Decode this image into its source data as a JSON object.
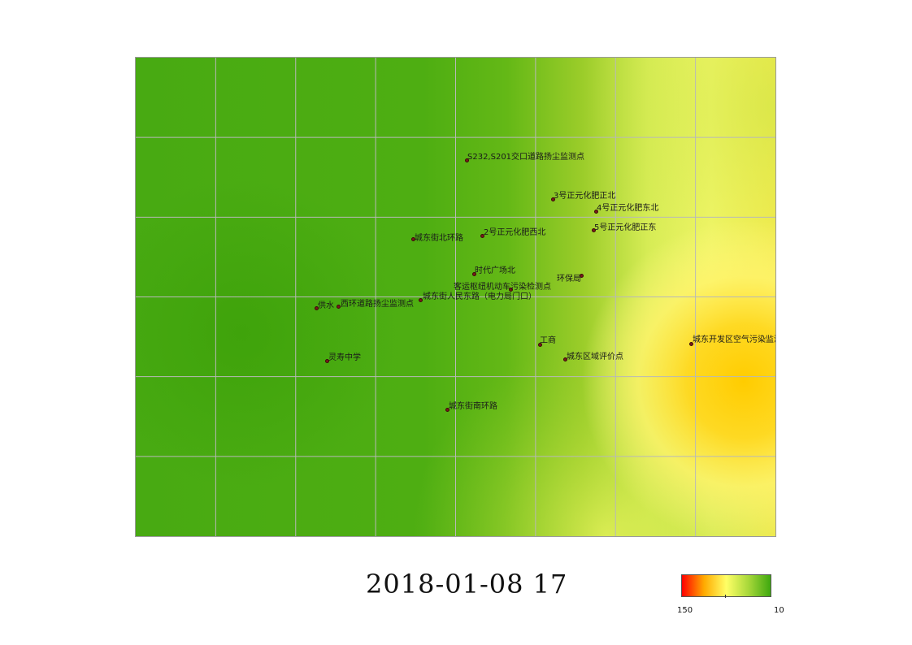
{
  "timestamp": "2018-01-08  17",
  "legend": {
    "max_label": "150",
    "min_label": "10",
    "colors": [
      "#ff0000",
      "#ffaa00",
      "#ffff66",
      "#a8d83a",
      "#3fa80f"
    ]
  },
  "grid": {
    "columns": 8,
    "rows": 6,
    "line_color": "#b8b8b8"
  },
  "stations": [
    {
      "name": "S232,S201交口道路扬尘监测点"
    },
    {
      "name": "3号正元化肥正北"
    },
    {
      "name": "4号正元化肥东北"
    },
    {
      "name": "城东街北环路"
    },
    {
      "name": "2号正元化肥西北"
    },
    {
      "name": "5号正元化肥正东"
    },
    {
      "name": "时代广场北"
    },
    {
      "name": "环保局"
    },
    {
      "name": "客运枢纽机动车污染检测点"
    },
    {
      "name": "供水"
    },
    {
      "name": "西环道路扬尘监测点"
    },
    {
      "name": "城东街人民东路（电力局门口）"
    },
    {
      "name": "工商"
    },
    {
      "name": "城东开发区空气污染监测点"
    },
    {
      "name": "灵寿中学"
    },
    {
      "name": "城东区域评价点"
    },
    {
      "name": "城东街南环路"
    }
  ]
}
